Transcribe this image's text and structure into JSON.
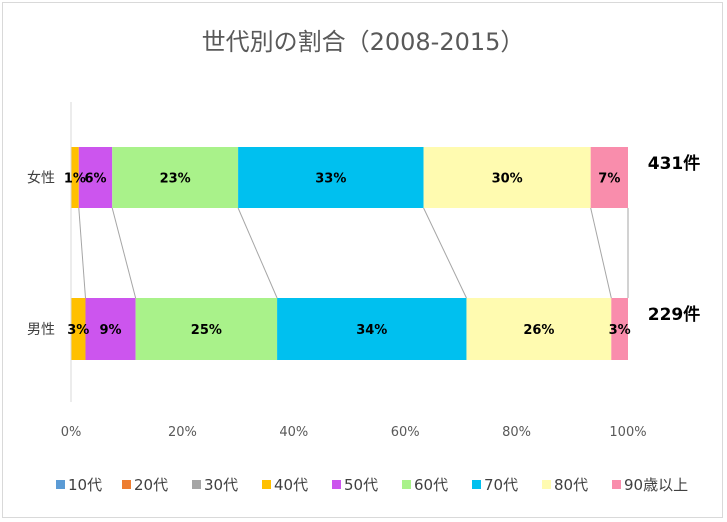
{
  "chart_data": {
    "type": "bar",
    "orientation": "horizontal",
    "stacked": "percent",
    "title": "世代別の割合（2008-2015）",
    "categories": [
      "女性",
      "男性"
    ],
    "counts": [
      "431件",
      "229件"
    ],
    "series": [
      {
        "name": "10代",
        "color": "#5b9bd5",
        "values": [
          0,
          0
        ],
        "labels": [
          "",
          ""
        ]
      },
      {
        "name": "20代",
        "color": "#ed7d31",
        "values": [
          0,
          0
        ],
        "labels": [
          "",
          ""
        ]
      },
      {
        "name": "30代",
        "color": "#a5a5a5",
        "values": [
          0,
          0
        ],
        "labels": [
          "",
          ""
        ]
      },
      {
        "name": "40代",
        "color": "#ffc000",
        "values": [
          1.4,
          2.6
        ],
        "labels": [
          "1%",
          "3%"
        ]
      },
      {
        "name": "50代",
        "color": "#cc55ee",
        "values": [
          6,
          9
        ],
        "labels": [
          "6%",
          "9%"
        ]
      },
      {
        "name": "60代",
        "color": "#a9f28a",
        "values": [
          22.6,
          25.4
        ],
        "labels": [
          "23%",
          "25%"
        ]
      },
      {
        "name": "70代",
        "color": "#00c0ef",
        "values": [
          33.3,
          34
        ],
        "labels": [
          "33%",
          "34%"
        ]
      },
      {
        "name": "80代",
        "color": "#fffbb0",
        "values": [
          30,
          26
        ],
        "labels": [
          "30%",
          "26%"
        ]
      },
      {
        "name": "90歳以上",
        "color": "#f98dac",
        "values": [
          6.7,
          3
        ],
        "labels": [
          "7%",
          "3%"
        ]
      }
    ],
    "xticks": [
      "0%",
      "20%",
      "40%",
      "60%",
      "80%",
      "100%"
    ],
    "xlim": [
      0,
      100
    ],
    "grid": false,
    "series_lines": true,
    "legend_position": "bottom"
  }
}
